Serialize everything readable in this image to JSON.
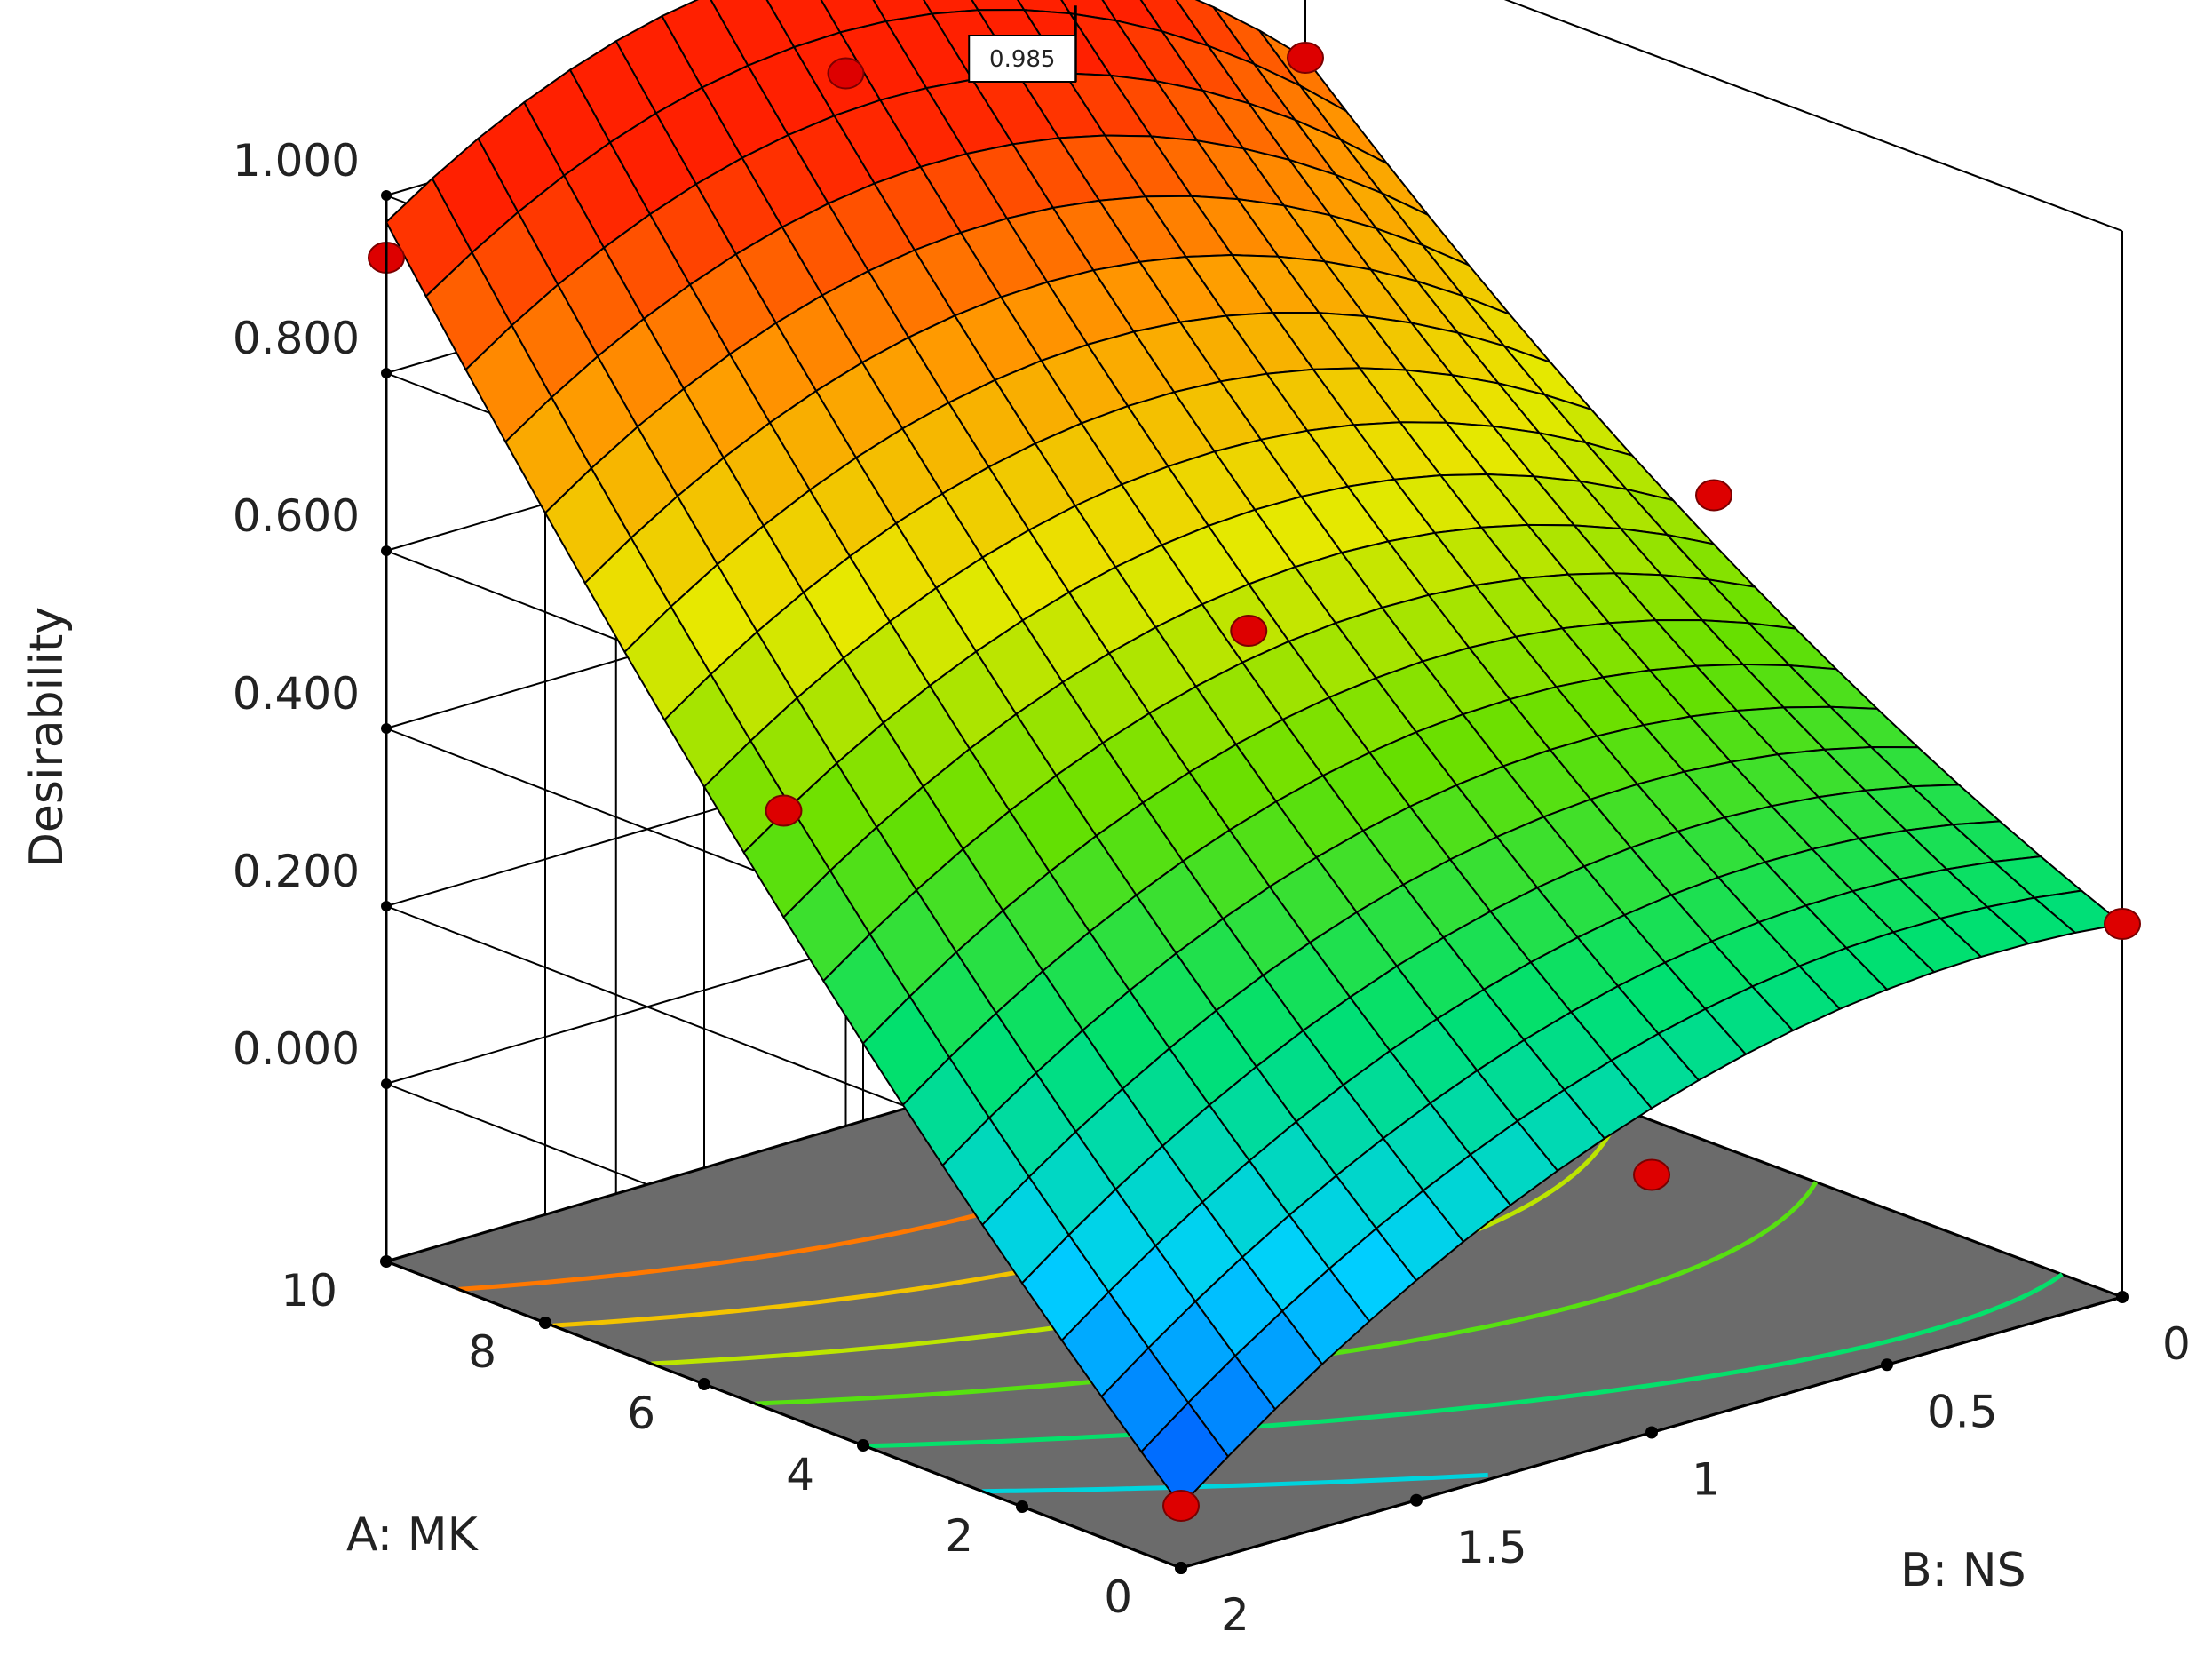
{
  "chart_data": {
    "type": "surface3d",
    "z_axis": {
      "label": "Desirability",
      "ticks": [
        "0.000",
        "0.200",
        "0.400",
        "0.600",
        "0.800",
        "1.000"
      ],
      "range": [
        -0.2,
        1.0
      ]
    },
    "x_axis": {
      "label": "A: MK",
      "ticks": [
        "0",
        "2",
        "4",
        "6",
        "8",
        "10"
      ],
      "range": [
        0,
        10
      ]
    },
    "y_axis": {
      "label": "B: NS",
      "ticks": [
        "0",
        "0.5",
        "1",
        "1.5",
        "2"
      ],
      "range": [
        0,
        2
      ]
    },
    "flag": {
      "label": "0.985",
      "A": 10,
      "B": 0.5,
      "value": 0.985
    },
    "surface": {
      "function": "quadratic",
      "corners": {
        "A0_B0": 0.22,
        "A0_B2": -0.13,
        "A10_B0": 0.85,
        "A10_B2": 0.97
      },
      "peak": {
        "A": 10,
        "B": 0.6,
        "value": 0.985
      }
    },
    "design_points": [
      {
        "A": 10,
        "B": 2,
        "value": 0.93
      },
      {
        "A": 10,
        "B": 1,
        "value": 0.985
      },
      {
        "A": 10,
        "B": 0,
        "value": 0.85
      },
      {
        "A": 5,
        "B": 2,
        "value": 0.48
      },
      {
        "A": 5,
        "B": 1,
        "value": 0.53
      },
      {
        "A": 5,
        "B": 0,
        "value": 0.53
      },
      {
        "A": 0,
        "B": 2,
        "value": -0.13
      },
      {
        "A": 0,
        "B": 1,
        "value": 0.09
      },
      {
        "A": 0,
        "B": 0,
        "value": 0.22
      }
    ],
    "contour_levels": [
      0.85,
      0.7,
      0.55,
      0.4,
      0.25,
      0.1
    ],
    "colors": {
      "floor": "#6b6b6b",
      "point": "#dd0000",
      "colormap": [
        "#0050ff",
        "#00d0ff",
        "#00e070",
        "#66e000",
        "#e8e800",
        "#ff9900",
        "#ff2000"
      ]
    },
    "grid": true
  }
}
